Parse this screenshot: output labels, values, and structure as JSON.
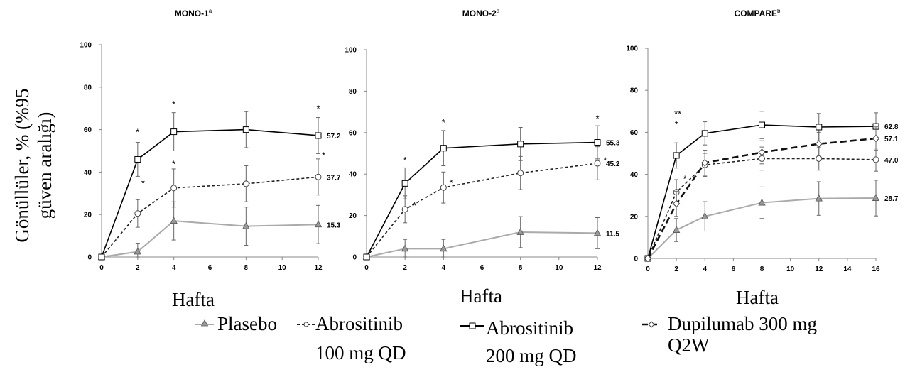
{
  "y_axis_label_line1": "Gönüllüler, % (%95",
  "y_axis_label_line2": "güven aralığı)",
  "x_axis_label": "Hafta",
  "legend": {
    "placebo": "Plasebo",
    "abro100_line1": "Abrositinib",
    "abro100_line2": "100 mg QD",
    "abro200_line1": "Abrositinib",
    "abro200_line2": "200 mg QD",
    "dupi_line1": "Dupilumab 300 mg",
    "dupi_line2": "Q2W"
  },
  "colors": {
    "placebo": "#aaaaaa",
    "abro100": "#222222",
    "abro200": "#000000",
    "dupilumab": "#111111"
  },
  "chart_data": [
    {
      "type": "line",
      "title": "MONO-1",
      "title_sup": "a",
      "xlabel": "Hafta",
      "ylabel": "Gönüllüler, % (%95 güven aralığı)",
      "x_ticks": [
        "0",
        "2",
        "4",
        "6",
        "8",
        "10",
        "12"
      ],
      "y_ticks": [
        "0",
        "20",
        "40",
        "60",
        "80",
        "100"
      ],
      "xlim": [
        0,
        12
      ],
      "ylim": [
        0,
        100
      ],
      "series": [
        {
          "name": "Plasebo",
          "key": "placebo",
          "x": [
            0,
            2,
            4,
            8,
            12
          ],
          "values": [
            0,
            2.5,
            17,
            14.5,
            15.3
          ],
          "err": [
            0,
            4,
            9,
            9,
            9
          ],
          "end_label": "15.3",
          "ast": []
        },
        {
          "name": "Abrositinib 100 mg QD",
          "key": "abro100",
          "x": [
            0,
            2,
            4,
            8,
            12
          ],
          "values": [
            0,
            20.5,
            32.5,
            34.5,
            37.7
          ],
          "err": [
            0,
            6.5,
            9,
            8.5,
            8.5
          ],
          "end_label": "37.7",
          "ast": [
            2,
            12
          ]
        },
        {
          "name": "Abrositinib 200 mg QD",
          "key": "abro200",
          "x": [
            0,
            2,
            4,
            8,
            12
          ],
          "values": [
            0,
            46,
            59,
            60,
            57.2
          ],
          "err": [
            0,
            8,
            9,
            8.5,
            8.5
          ],
          "end_label": "57.2",
          "ast": [
            2,
            4,
            12
          ]
        }
      ],
      "asterisks": [
        {
          "x": 2,
          "y": 59,
          "text": "*"
        },
        {
          "x": 4,
          "y": 72,
          "text": "*"
        },
        {
          "x": 12,
          "y": 70,
          "text": "*"
        },
        {
          "x": 2.3,
          "y": 35,
          "text": "*"
        },
        {
          "x": 4,
          "y": 44,
          "text": "*"
        },
        {
          "x": 12.3,
          "y": 48,
          "text": "*"
        }
      ]
    },
    {
      "type": "line",
      "title": "MONO-2",
      "title_sup": "a",
      "xlabel": "Hafta",
      "ylabel": "",
      "x_ticks": [
        "0",
        "2",
        "4",
        "6",
        "8",
        "10",
        "12"
      ],
      "y_ticks": [
        "0",
        "20",
        "40",
        "60",
        "80",
        "100"
      ],
      "xlim": [
        0,
        12
      ],
      "ylim": [
        0,
        100
      ],
      "series": [
        {
          "name": "Plasebo",
          "key": "placebo",
          "x": [
            0,
            2,
            4,
            8,
            12
          ],
          "values": [
            0,
            4,
            4,
            12,
            11.5
          ],
          "err": [
            0,
            4.5,
            4.5,
            7.5,
            7.5
          ],
          "end_label": "11.5",
          "ast": []
        },
        {
          "name": "Abrositinib 100 mg QD",
          "key": "abro100",
          "x": [
            0,
            2,
            4,
            8,
            12
          ],
          "values": [
            0,
            23,
            33.5,
            40.5,
            45.2
          ],
          "err": [
            0,
            6.5,
            7.5,
            8,
            8
          ],
          "end_label": "45.2",
          "ast": [
            2,
            4,
            12
          ]
        },
        {
          "name": "Abrositinib 200 mg QD",
          "key": "abro200",
          "x": [
            0,
            2,
            4,
            8,
            12
          ],
          "values": [
            0,
            35.5,
            52.5,
            54.5,
            55.3
          ],
          "err": [
            0,
            7.5,
            8.5,
            8,
            8
          ],
          "end_label": "55.3",
          "ast": [
            2,
            4,
            12
          ]
        }
      ],
      "asterisks": [
        {
          "x": 2,
          "y": 47,
          "text": "*"
        },
        {
          "x": 4,
          "y": 65,
          "text": "*"
        },
        {
          "x": 12,
          "y": 67,
          "text": "*"
        },
        {
          "x": 2.5,
          "y": 25,
          "text": "*"
        },
        {
          "x": 4.4,
          "y": 36,
          "text": "*"
        },
        {
          "x": 12.4,
          "y": 47,
          "text": "*"
        }
      ]
    },
    {
      "type": "line",
      "title": "COMPARE",
      "title_sup": "b",
      "xlabel": "Hafta",
      "ylabel": "",
      "x_ticks": [
        "0",
        "2",
        "4",
        "6",
        "8",
        "10",
        "12",
        "14",
        "16"
      ],
      "y_ticks": [
        "0",
        "20",
        "40",
        "60",
        "80",
        "100"
      ],
      "xlim": [
        0,
        16
      ],
      "ylim": [
        0,
        100
      ],
      "series": [
        {
          "name": "Plasebo",
          "key": "placebo",
          "x": [
            0,
            2,
            4,
            8,
            12,
            16
          ],
          "values": [
            0,
            13.5,
            20,
            26.5,
            28.5,
            28.7
          ],
          "err": [
            0,
            5.5,
            7,
            7.5,
            8,
            8.5
          ],
          "end_label": "28.7",
          "ast": []
        },
        {
          "name": "Abrositinib 100 mg QD",
          "key": "abro100",
          "x": [
            0,
            2,
            4,
            8,
            12,
            16
          ],
          "values": [
            0,
            31.5,
            44.5,
            47.5,
            47.5,
            47.0
          ],
          "err": [
            0,
            6,
            5.5,
            5.5,
            5.5,
            5.5
          ],
          "end_label": "47.0",
          "ast": [
            2
          ]
        },
        {
          "name": "Abrositinib 200 mg QD",
          "key": "abro200",
          "x": [
            0,
            2,
            4,
            8,
            12,
            16
          ],
          "values": [
            0,
            49,
            59.5,
            63.5,
            62.5,
            62.8
          ],
          "err": [
            0,
            6,
            5.5,
            6.5,
            6.5,
            6.5
          ],
          "end_label": "62.8",
          "ast": [
            2
          ]
        },
        {
          "name": "Dupilumab 300 mg Q2W",
          "key": "dupilumab",
          "x": [
            0,
            2,
            4,
            8,
            12,
            16
          ],
          "values": [
            0,
            26,
            45.5,
            50.5,
            54.5,
            57.1
          ],
          "err": [
            0,
            6,
            6,
            5.5,
            5.5,
            5.5
          ],
          "end_label": "57.1",
          "ast": [
            2
          ]
        }
      ],
      "asterisks": [
        {
          "x": 2.1,
          "y": 69,
          "text": "**"
        },
        {
          "x": 2,
          "y": 64,
          "text": "*"
        },
        {
          "x": 2.6,
          "y": 38,
          "text": "*"
        }
      ]
    }
  ]
}
